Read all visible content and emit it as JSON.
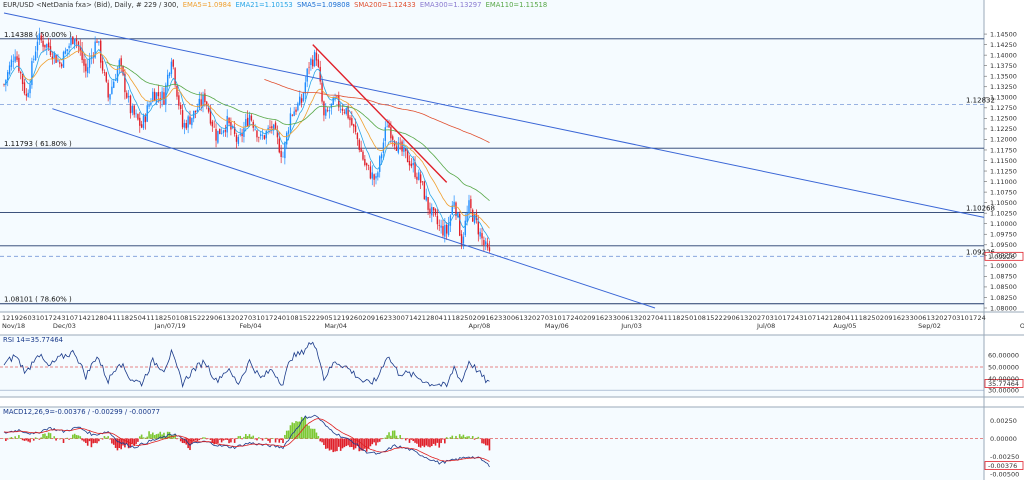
{
  "colors": {
    "background": "#f5fbff",
    "candle_up": "#1e8cff",
    "candle_down": "#e0202a",
    "trend_blue": "#3a66d6",
    "trend_red": "#e0202a",
    "ema5": "#2aa6e6",
    "ema21": "#9ac84a",
    "sma5": "#1a6fd4",
    "ema20": "#f0a030",
    "sma200": "#e05030",
    "ema300": "#8a7ad0",
    "ema110": "#58a848",
    "rsi": "#1a3a8a",
    "macd_line": "#1a3a8a",
    "macd_signal": "#e02020",
    "macd_hist_up": "#7cc832",
    "macd_hist_down": "#e0202a"
  },
  "header": {
    "prefix": "EUR/USD <NetDania fxa> (Bid), Daily, # 229 / 300,",
    "ema5": "EMA5=1.0984",
    "ema21": "EMA21=1.10153",
    "sma5": "SMA5=1.09808",
    "sma200": "SMA200=1.12433",
    "ema300": "EMA300=1.13297",
    "ema110": "EMA110=1.11518"
  },
  "chart_data": [
    {
      "type": "candlestick",
      "ylim": [
        1.08,
        1.15
      ],
      "yticks": [
        "1.14500",
        "1.14250",
        "1.14000",
        "1.13750",
        "1.13500",
        "1.13250",
        "1.13000",
        "1.12750",
        "1.12500",
        "1.12250",
        "1.12000",
        "1.11750",
        "1.11500",
        "1.11250",
        "1.11000",
        "1.10750",
        "1.10500",
        "1.10250",
        "1.10000",
        "1.09750",
        "1.09500",
        "1.09250",
        "1.09000",
        "1.08750",
        "1.08500",
        "1.08250",
        "1.08000"
      ],
      "xticks_day": [
        "12",
        "19",
        "26",
        "03",
        "10",
        "17",
        "24",
        "31",
        "07",
        "14",
        "21",
        "28",
        "04",
        "11",
        "18",
        "25",
        "04",
        "11",
        "18",
        "25",
        "01",
        "08",
        "15",
        "22",
        "29",
        "06",
        "13",
        "20",
        "27",
        "03",
        "10",
        "17",
        "24",
        "01",
        "08",
        "15",
        "22",
        "29",
        "05",
        "12",
        "19",
        "26",
        "02",
        "09",
        "16",
        "23",
        "30",
        "07",
        "14",
        "21",
        "28",
        "04",
        "11",
        "18",
        "25",
        "02",
        "09",
        "16",
        "23",
        "30",
        "06",
        "13",
        "20",
        "27",
        "03",
        "10",
        "17",
        "24",
        "02",
        "09",
        "16",
        "23",
        "30",
        "06",
        "13",
        "20",
        "27",
        "04",
        "11",
        "18",
        "25",
        "01",
        "08",
        "15",
        "22",
        "29",
        "06",
        "13",
        "20",
        "27",
        "03",
        "10",
        "17",
        "24",
        "31",
        "07",
        "14",
        "21",
        "28",
        "04",
        "11",
        "18",
        "25",
        "02",
        "09",
        "16",
        "23",
        "30",
        "06",
        "13",
        "20",
        "27",
        "03",
        "10",
        "17",
        "24"
      ],
      "xticks_month": [
        "Nov/18",
        "Dec/03",
        "Jan/07/19",
        "Feb/04",
        "Mar/04",
        "Apr/08",
        "May/06",
        "Jun/03",
        "Jul/08",
        "Aug/05",
        "Sep/02",
        "Oct/07",
        "Nov/04",
        "Dec/02",
        "Jan/06/20",
        "Feb/03",
        "Mar/02",
        "Apr/06",
        "May/04",
        "Jun/08",
        "Jul/06",
        "Aug/03"
      ],
      "levels": [
        {
          "value": 1.14388,
          "label": "1.14388 ( 50.00% )",
          "style": "solid"
        },
        {
          "value": 1.11793,
          "label": "1.11793 ( 61.80% )",
          "style": "solid"
        },
        {
          "value": 1.08101,
          "label": "1.08101 ( 78.60% )",
          "style": "solid"
        },
        {
          "value": 1.12832,
          "label": "1.12832",
          "style": "dashed"
        },
        {
          "value": 1.10268,
          "label": "1.10268",
          "style": "solid"
        },
        {
          "value": 1.09475,
          "label": "",
          "style": "solid"
        },
        {
          "value": 1.09226,
          "label": "1.09226",
          "style": "dashed"
        }
      ],
      "current_price": "1.09226",
      "waypoints": [
        [
          0,
          1.133
        ],
        [
          6,
          1.141
        ],
        [
          12,
          1.13
        ],
        [
          18,
          1.144
        ],
        [
          24,
          1.142
        ],
        [
          30,
          1.138
        ],
        [
          38,
          1.145
        ],
        [
          44,
          1.136
        ],
        [
          50,
          1.144
        ],
        [
          56,
          1.13
        ],
        [
          62,
          1.138
        ],
        [
          68,
          1.127
        ],
        [
          74,
          1.123
        ],
        [
          80,
          1.131
        ],
        [
          86,
          1.13
        ],
        [
          90,
          1.14
        ],
        [
          96,
          1.123
        ],
        [
          102,
          1.126
        ],
        [
          108,
          1.13
        ],
        [
          114,
          1.121
        ],
        [
          120,
          1.124
        ],
        [
          126,
          1.119
        ],
        [
          132,
          1.126
        ],
        [
          138,
          1.12
        ],
        [
          144,
          1.123
        ],
        [
          150,
          1.116
        ],
        [
          154,
          1.126
        ],
        [
          160,
          1.129
        ],
        [
          164,
          1.138
        ],
        [
          168,
          1.14
        ],
        [
          172,
          1.125
        ],
        [
          178,
          1.129
        ],
        [
          184,
          1.127
        ],
        [
          190,
          1.12
        ],
        [
          194,
          1.114
        ],
        [
          200,
          1.11
        ],
        [
          206,
          1.124
        ],
        [
          212,
          1.118
        ],
        [
          218,
          1.115
        ],
        [
          224,
          1.11
        ],
        [
          228,
          1.104
        ],
        [
          234,
          1.099
        ],
        [
          238,
          1.098
        ],
        [
          242,
          1.106
        ],
        [
          246,
          1.096
        ],
        [
          250,
          1.104
        ],
        [
          254,
          1.1
        ],
        [
          258,
          1.095
        ],
        [
          261,
          1.0925
        ]
      ]
    },
    {
      "type": "line",
      "name": "RSI 14=35.77464",
      "yticks": [
        "60.00000",
        "50.00000",
        "40.00000",
        "30.00000"
      ],
      "ylim": [
        25,
        75
      ],
      "level_dashed": 50,
      "level_solid": 30,
      "current": "35.77464",
      "waypoints": [
        [
          0,
          52
        ],
        [
          6,
          60
        ],
        [
          12,
          45
        ],
        [
          18,
          62
        ],
        [
          24,
          50
        ],
        [
          30,
          58
        ],
        [
          38,
          63
        ],
        [
          44,
          42
        ],
        [
          50,
          60
        ],
        [
          56,
          38
        ],
        [
          62,
          55
        ],
        [
          68,
          40
        ],
        [
          74,
          36
        ],
        [
          80,
          55
        ],
        [
          86,
          48
        ],
        [
          90,
          62
        ],
        [
          96,
          36
        ],
        [
          102,
          48
        ],
        [
          108,
          55
        ],
        [
          114,
          38
        ],
        [
          120,
          48
        ],
        [
          126,
          36
        ],
        [
          132,
          55
        ],
        [
          138,
          40
        ],
        [
          144,
          48
        ],
        [
          150,
          35
        ],
        [
          154,
          58
        ],
        [
          160,
          62
        ],
        [
          164,
          70
        ],
        [
          168,
          68
        ],
        [
          172,
          40
        ],
        [
          178,
          55
        ],
        [
          184,
          50
        ],
        [
          190,
          42
        ],
        [
          194,
          36
        ],
        [
          200,
          38
        ],
        [
          206,
          60
        ],
        [
          212,
          45
        ],
        [
          218,
          44
        ],
        [
          224,
          40
        ],
        [
          228,
          36
        ],
        [
          234,
          35
        ],
        [
          238,
          33
        ],
        [
          242,
          50
        ],
        [
          246,
          37
        ],
        [
          250,
          55
        ],
        [
          254,
          48
        ],
        [
          258,
          40
        ],
        [
          261,
          36
        ]
      ]
    },
    {
      "type": "macd",
      "name": "MACD12,26,9=-0.00376 / -0.00299 / -0.00077",
      "yticks": [
        "0.00250",
        "0.00000",
        "-0.00250",
        "-0.00500"
      ],
      "ylim": [
        -0.0055,
        0.004
      ],
      "current": "-0.00376",
      "macd_waypoints": [
        [
          0,
          0.0008
        ],
        [
          8,
          0.0012
        ],
        [
          16,
          0.0006
        ],
        [
          24,
          0.0015
        ],
        [
          32,
          0.001
        ],
        [
          40,
          0.0016
        ],
        [
          48,
          0.0005
        ],
        [
          56,
          0.001
        ],
        [
          62,
          -0.0005
        ],
        [
          70,
          -0.0012
        ],
        [
          78,
          -0.0004
        ],
        [
          86,
          0.0002
        ],
        [
          92,
          0.0007
        ],
        [
          100,
          -0.0008
        ],
        [
          108,
          -0.0004
        ],
        [
          116,
          -0.001
        ],
        [
          124,
          -0.0012
        ],
        [
          132,
          -0.0006
        ],
        [
          140,
          -0.0009
        ],
        [
          150,
          -0.0012
        ],
        [
          156,
          0.001
        ],
        [
          162,
          0.003
        ],
        [
          168,
          0.0032
        ],
        [
          174,
          0.0015
        ],
        [
          180,
          0.0005
        ],
        [
          188,
          -0.0005
        ],
        [
          194,
          -0.0018
        ],
        [
          202,
          -0.0022
        ],
        [
          210,
          -0.001
        ],
        [
          218,
          -0.0015
        ],
        [
          226,
          -0.0025
        ],
        [
          234,
          -0.0034
        ],
        [
          242,
          -0.003
        ],
        [
          250,
          -0.0025
        ],
        [
          256,
          -0.0028
        ],
        [
          261,
          -0.0038
        ]
      ]
    }
  ]
}
